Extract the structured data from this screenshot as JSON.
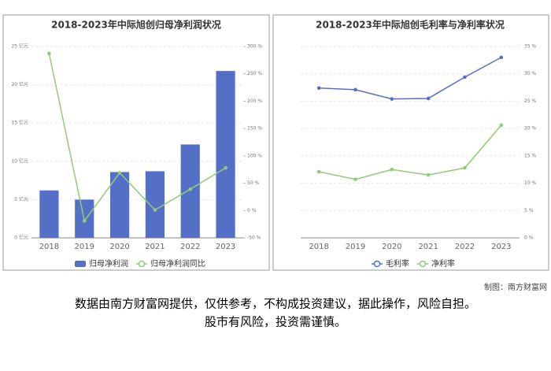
{
  "chart_data": [
    {
      "type": "bar",
      "title": "2018-2023年中际旭创归母净利润状况",
      "categories": [
        "2018",
        "2019",
        "2020",
        "2021",
        "2022",
        "2023"
      ],
      "series": [
        {
          "name": "归母净利润",
          "type": "bar",
          "color": "#5470c6",
          "values": [
            6.2,
            5.0,
            8.6,
            8.7,
            12.2,
            21.8
          ]
        },
        {
          "name": "归母净利润同比",
          "type": "line",
          "axis": "y2",
          "color": "#91cc75",
          "values": [
            287,
            -19,
            69,
            1,
            39,
            78
          ]
        }
      ],
      "ylim": [
        0,
        25
      ],
      "yticks": [
        {
          "value": 0,
          "label": "0 亿元"
        },
        {
          "value": 5,
          "label": "5 亿元"
        },
        {
          "value": 10,
          "label": "10 亿元"
        },
        {
          "value": 15,
          "label": "15 亿元"
        },
        {
          "value": 20,
          "label": "20 亿元"
        },
        {
          "value": 25,
          "label": "25 亿元"
        }
      ],
      "y2lim": [
        -50,
        300
      ],
      "y2ticks": [
        {
          "value": -50,
          "label": "-50 %"
        },
        {
          "value": 0,
          "label": "0 %"
        },
        {
          "value": 50,
          "label": "50 %"
        },
        {
          "value": 100,
          "label": "100 %"
        },
        {
          "value": 150,
          "label": "150 %"
        },
        {
          "value": 200,
          "label": "200 %"
        },
        {
          "value": 250,
          "label": "250 %"
        },
        {
          "value": 300,
          "label": "300 %"
        }
      ],
      "grid": true
    },
    {
      "type": "line",
      "title": "2018-2023年中际旭创毛利率与净利率状况",
      "categories": [
        "2018",
        "2019",
        "2020",
        "2021",
        "2022",
        "2023"
      ],
      "series": [
        {
          "name": "毛利率",
          "type": "line",
          "color": "#5470c6",
          "values": [
            27.4,
            27.1,
            25.4,
            25.5,
            29.4,
            33.0
          ]
        },
        {
          "name": "净利率",
          "type": "line",
          "color": "#91cc75",
          "values": [
            12.1,
            10.7,
            12.5,
            11.5,
            12.8,
            20.6
          ]
        }
      ],
      "ylim": [
        0,
        35
      ],
      "yticks": [
        {
          "value": 0,
          "label": "0 %"
        },
        {
          "value": 5,
          "label": "5 %"
        },
        {
          "value": 10,
          "label": "10 %"
        },
        {
          "value": 15,
          "label": "15 %"
        },
        {
          "value": 20,
          "label": "20 %"
        },
        {
          "value": 25,
          "label": "25 %"
        },
        {
          "value": 30,
          "label": "30 %"
        },
        {
          "value": 35,
          "label": "35 %"
        }
      ],
      "grid": true
    }
  ],
  "credit": "制图：南方财富网",
  "disclaimer": [
    "数据由南方财富网提供，仅供参考，不构成投资建议，据此操作，风险自担。",
    "股市有风险，投资需谨慎。"
  ]
}
